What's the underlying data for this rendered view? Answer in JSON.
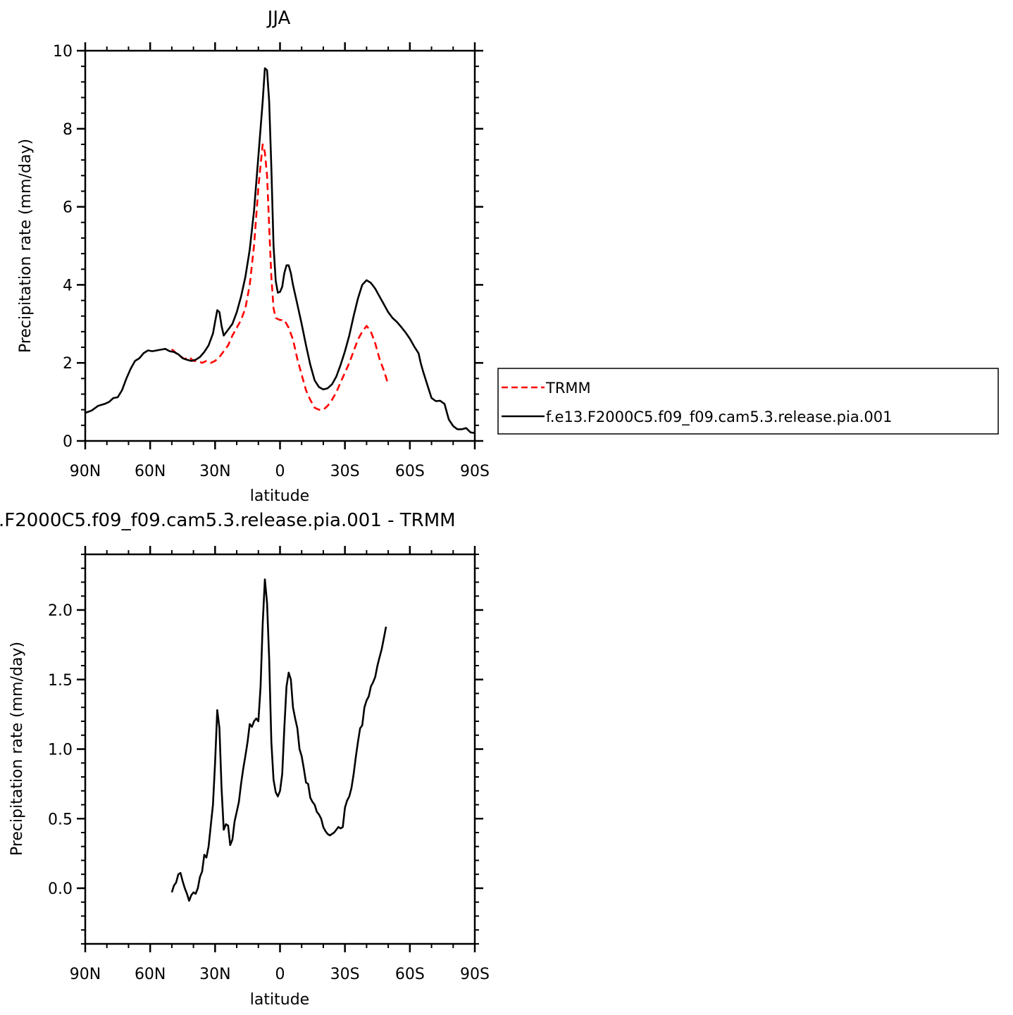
{
  "chart_data": [
    {
      "type": "line",
      "title": "JJA",
      "xlabel": "latitude",
      "ylabel": "Precipitation rate (mm/day)",
      "xlim": [
        90,
        -90
      ],
      "ylim": [
        0,
        10
      ],
      "x_ticks": [
        90,
        60,
        30,
        0,
        -30,
        -60,
        -90
      ],
      "x_tick_labels": [
        "90N",
        "60N",
        "30N",
        "0",
        "30S",
        "60S",
        "90S"
      ],
      "y_ticks": [
        0,
        2,
        4,
        6,
        8,
        10
      ],
      "y_tick_labels": [
        "0",
        "2",
        "4",
        "6",
        "8",
        "10"
      ],
      "legend": "outside-right",
      "series": [
        {
          "name": "TRMM",
          "color": "#ff0000",
          "style": "dashed",
          "points": [
            [
              50,
              2.35
            ],
            [
              47,
              2.2
            ],
            [
              44,
              2.1
            ],
            [
              42,
              2.15
            ],
            [
              40,
              2.05
            ],
            [
              38,
              2.05
            ],
            [
              36,
              2.0
            ],
            [
              34,
              2.05
            ],
            [
              32,
              2.0
            ],
            [
              30,
              2.05
            ],
            [
              28,
              2.15
            ],
            [
              26,
              2.3
            ],
            [
              24,
              2.45
            ],
            [
              22,
              2.7
            ],
            [
              20,
              2.9
            ],
            [
              18,
              3.1
            ],
            [
              16,
              3.4
            ],
            [
              14,
              4.0
            ],
            [
              12,
              5.0
            ],
            [
              10,
              6.5
            ],
            [
              8,
              7.6
            ],
            [
              7,
              7.4
            ],
            [
              6,
              6.8
            ],
            [
              5,
              5.5
            ],
            [
              4,
              4.2
            ],
            [
              3,
              3.4
            ],
            [
              2,
              3.15
            ],
            [
              0,
              3.1
            ],
            [
              -2,
              3.1
            ],
            [
              -4,
              2.9
            ],
            [
              -6,
              2.6
            ],
            [
              -8,
              2.1
            ],
            [
              -10,
              1.7
            ],
            [
              -12,
              1.3
            ],
            [
              -14,
              1.05
            ],
            [
              -16,
              0.85
            ],
            [
              -18,
              0.8
            ],
            [
              -20,
              0.8
            ],
            [
              -22,
              0.9
            ],
            [
              -24,
              1.05
            ],
            [
              -26,
              1.25
            ],
            [
              -28,
              1.5
            ],
            [
              -30,
              1.75
            ],
            [
              -32,
              2.0
            ],
            [
              -34,
              2.3
            ],
            [
              -36,
              2.6
            ],
            [
              -38,
              2.8
            ],
            [
              -40,
              2.95
            ],
            [
              -42,
              2.8
            ],
            [
              -44,
              2.5
            ],
            [
              -46,
              2.1
            ],
            [
              -48,
              1.8
            ],
            [
              -50,
              1.45
            ]
          ]
        },
        {
          "name": "f.e13.F2000C5.f09_f09.cam5.3.release.pia.001",
          "color": "#000000",
          "style": "solid",
          "points": [
            [
              90,
              0.72
            ],
            [
              87,
              0.78
            ],
            [
              84,
              0.9
            ],
            [
              81,
              0.95
            ],
            [
              79,
              1.0
            ],
            [
              77,
              1.1
            ],
            [
              75,
              1.12
            ],
            [
              73,
              1.3
            ],
            [
              71,
              1.6
            ],
            [
              69,
              1.85
            ],
            [
              67,
              2.05
            ],
            [
              65,
              2.12
            ],
            [
              63,
              2.25
            ],
            [
              61,
              2.32
            ],
            [
              59,
              2.3
            ],
            [
              57,
              2.32
            ],
            [
              55,
              2.34
            ],
            [
              53,
              2.36
            ],
            [
              51,
              2.3
            ],
            [
              49,
              2.28
            ],
            [
              47,
              2.22
            ],
            [
              45,
              2.12
            ],
            [
              43,
              2.08
            ],
            [
              41,
              2.05
            ],
            [
              39,
              2.08
            ],
            [
              37,
              2.15
            ],
            [
              35,
              2.28
            ],
            [
              33,
              2.45
            ],
            [
              31,
              2.75
            ],
            [
              30,
              3.05
            ],
            [
              29,
              3.35
            ],
            [
              28,
              3.3
            ],
            [
              27,
              2.95
            ],
            [
              26,
              2.7
            ],
            [
              24,
              2.85
            ],
            [
              22,
              3.0
            ],
            [
              20,
              3.3
            ],
            [
              18,
              3.7
            ],
            [
              16,
              4.2
            ],
            [
              14,
              4.9
            ],
            [
              12,
              5.9
            ],
            [
              10,
              7.3
            ],
            [
              8,
              8.7
            ],
            [
              7,
              9.55
            ],
            [
              6,
              9.5
            ],
            [
              5,
              8.7
            ],
            [
              4,
              7.0
            ],
            [
              3,
              5.0
            ],
            [
              2,
              4.1
            ],
            [
              1,
              3.8
            ],
            [
              0,
              3.82
            ],
            [
              -1,
              3.95
            ],
            [
              -2,
              4.3
            ],
            [
              -3,
              4.5
            ],
            [
              -4,
              4.5
            ],
            [
              -5,
              4.3
            ],
            [
              -6,
              4.0
            ],
            [
              -8,
              3.5
            ],
            [
              -10,
              3.0
            ],
            [
              -12,
              2.45
            ],
            [
              -14,
              1.95
            ],
            [
              -16,
              1.55
            ],
            [
              -18,
              1.38
            ],
            [
              -20,
              1.32
            ],
            [
              -22,
              1.35
            ],
            [
              -24,
              1.45
            ],
            [
              -26,
              1.65
            ],
            [
              -28,
              1.95
            ],
            [
              -30,
              2.3
            ],
            [
              -32,
              2.7
            ],
            [
              -34,
              3.2
            ],
            [
              -36,
              3.65
            ],
            [
              -38,
              4.0
            ],
            [
              -40,
              4.12
            ],
            [
              -42,
              4.05
            ],
            [
              -44,
              3.9
            ],
            [
              -46,
              3.7
            ],
            [
              -48,
              3.5
            ],
            [
              -50,
              3.3
            ],
            [
              -52,
              3.15
            ],
            [
              -54,
              3.05
            ],
            [
              -56,
              2.92
            ],
            [
              -58,
              2.78
            ],
            [
              -60,
              2.62
            ],
            [
              -62,
              2.42
            ],
            [
              -64,
              2.25
            ],
            [
              -65,
              2.0
            ],
            [
              -66,
              1.8
            ],
            [
              -68,
              1.45
            ],
            [
              -70,
              1.1
            ],
            [
              -72,
              1.02
            ],
            [
              -74,
              1.03
            ],
            [
              -76,
              0.95
            ],
            [
              -78,
              0.55
            ],
            [
              -80,
              0.38
            ],
            [
              -82,
              0.3
            ],
            [
              -84,
              0.3
            ],
            [
              -86,
              0.33
            ],
            [
              -88,
              0.22
            ],
            [
              -90,
              0.2
            ]
          ]
        }
      ]
    },
    {
      "type": "line",
      "title": ".F2000C5.f09_f09.cam5.3.release.pia.001 - TRMM",
      "xlabel": "latitude",
      "ylabel": "Precipitation rate (mm/day)",
      "xlim": [
        90,
        -90
      ],
      "ylim": [
        -0.4,
        2.4
      ],
      "x_ticks": [
        90,
        60,
        30,
        0,
        -30,
        -60,
        -90
      ],
      "x_tick_labels": [
        "90N",
        "60N",
        "30N",
        "0",
        "30S",
        "60S",
        "90S"
      ],
      "y_ticks": [
        0.0,
        0.5,
        1.0,
        1.5,
        2.0
      ],
      "y_tick_labels": [
        "0.0",
        "0.5",
        "1.0",
        "1.5",
        "2.0"
      ],
      "series": [
        {
          "color": "#000000",
          "style": "solid",
          "points": [
            [
              50,
              -0.03
            ],
            [
              49,
              0.02
            ],
            [
              48,
              0.04
            ],
            [
              47,
              0.1
            ],
            [
              46,
              0.11
            ],
            [
              45,
              0.05
            ],
            [
              44,
              0.0
            ],
            [
              43,
              -0.04
            ],
            [
              42,
              -0.09
            ],
            [
              41,
              -0.05
            ],
            [
              40,
              -0.03
            ],
            [
              39,
              -0.04
            ],
            [
              38,
              0.0
            ],
            [
              37,
              0.08
            ],
            [
              36,
              0.12
            ],
            [
              35,
              0.24
            ],
            [
              34,
              0.22
            ],
            [
              33,
              0.3
            ],
            [
              32,
              0.45
            ],
            [
              31,
              0.6
            ],
            [
              30,
              0.9
            ],
            [
              29,
              1.28
            ],
            [
              28,
              1.15
            ],
            [
              27,
              0.72
            ],
            [
              26,
              0.42
            ],
            [
              25,
              0.46
            ],
            [
              24,
              0.45
            ],
            [
              23,
              0.31
            ],
            [
              22,
              0.35
            ],
            [
              21,
              0.48
            ],
            [
              20,
              0.55
            ],
            [
              19,
              0.62
            ],
            [
              18,
              0.75
            ],
            [
              17,
              0.86
            ],
            [
              16,
              0.95
            ],
            [
              15,
              1.05
            ],
            [
              14,
              1.18
            ],
            [
              13,
              1.16
            ],
            [
              12,
              1.2
            ],
            [
              11,
              1.22
            ],
            [
              10,
              1.2
            ],
            [
              9,
              1.45
            ],
            [
              8,
              1.9
            ],
            [
              7,
              2.22
            ],
            [
              6,
              2.05
            ],
            [
              5,
              1.65
            ],
            [
              4,
              1.05
            ],
            [
              3,
              0.78
            ],
            [
              2,
              0.69
            ],
            [
              1,
              0.66
            ],
            [
              0,
              0.7
            ],
            [
              -1,
              0.82
            ],
            [
              -2,
              1.15
            ],
            [
              -3,
              1.45
            ],
            [
              -4,
              1.55
            ],
            [
              -5,
              1.5
            ],
            [
              -6,
              1.3
            ],
            [
              -7,
              1.22
            ],
            [
              -8,
              1.15
            ],
            [
              -9,
              1.0
            ],
            [
              -10,
              0.95
            ],
            [
              -11,
              0.86
            ],
            [
              -12,
              0.76
            ],
            [
              -13,
              0.75
            ],
            [
              -14,
              0.65
            ],
            [
              -15,
              0.62
            ],
            [
              -16,
              0.6
            ],
            [
              -17,
              0.55
            ],
            [
              -18,
              0.53
            ],
            [
              -19,
              0.5
            ],
            [
              -20,
              0.44
            ],
            [
              -21,
              0.41
            ],
            [
              -22,
              0.39
            ],
            [
              -23,
              0.38
            ],
            [
              -24,
              0.39
            ],
            [
              -25,
              0.4
            ],
            [
              -26,
              0.42
            ],
            [
              -27,
              0.44
            ],
            [
              -28,
              0.43
            ],
            [
              -29,
              0.44
            ],
            [
              -30,
              0.58
            ],
            [
              -31,
              0.63
            ],
            [
              -32,
              0.66
            ],
            [
              -33,
              0.72
            ],
            [
              -34,
              0.82
            ],
            [
              -35,
              0.94
            ],
            [
              -36,
              1.05
            ],
            [
              -37,
              1.15
            ],
            [
              -38,
              1.17
            ],
            [
              -39,
              1.3
            ],
            [
              -40,
              1.35
            ],
            [
              -41,
              1.38
            ],
            [
              -42,
              1.45
            ],
            [
              -43,
              1.48
            ],
            [
              -44,
              1.52
            ],
            [
              -45,
              1.6
            ],
            [
              -46,
              1.66
            ],
            [
              -47,
              1.72
            ],
            [
              -48,
              1.8
            ],
            [
              -49,
              1.88
            ]
          ]
        }
      ]
    }
  ]
}
